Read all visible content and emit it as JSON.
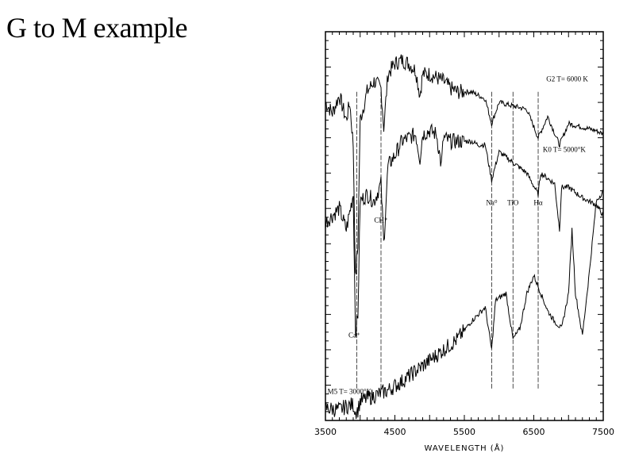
{
  "slide": {
    "title": "G to M example"
  },
  "chart_data": {
    "type": "line",
    "title": "",
    "xlabel": "WAVELENGTH (Å)",
    "ylabel": "",
    "xlim": [
      3500,
      7500
    ],
    "x_ticks": [
      3500,
      4500,
      5500,
      6500,
      7500
    ],
    "grid": false,
    "series": [
      {
        "name": "G2  T= 6000 K",
        "x": [
          3500,
          3600,
          3700,
          3800,
          3850,
          3900,
          3933,
          3968,
          4000,
          4100,
          4200,
          4300,
          4340,
          4400,
          4500,
          4600,
          4700,
          4800,
          4861,
          4900,
          5000,
          5100,
          5200,
          5300,
          5400,
          5500,
          5600,
          5700,
          5800,
          5893,
          6000,
          6200,
          6400,
          6563,
          6700,
          6870,
          7000,
          7200,
          7400,
          7500
        ],
        "y": [
          9.0,
          8.7,
          9.2,
          8.5,
          9.0,
          7.8,
          4.0,
          5.0,
          8.5,
          9.3,
          9.6,
          9.4,
          8.3,
          9.8,
          10.1,
          10.2,
          10.1,
          9.9,
          9.2,
          9.8,
          9.8,
          9.7,
          9.6,
          9.4,
          9.3,
          9.3,
          9.3,
          9.2,
          9.1,
          8.4,
          9.0,
          8.9,
          8.8,
          8.0,
          8.6,
          7.8,
          8.4,
          8.3,
          8.2,
          8.1
        ]
      },
      {
        "name": "K0  T= 5000°K",
        "x": [
          3500,
          3700,
          3800,
          3900,
          3933,
          3968,
          4000,
          4100,
          4200,
          4300,
          4340,
          4400,
          4500,
          4600,
          4700,
          4800,
          4861,
          4900,
          5000,
          5100,
          5168,
          5200,
          5300,
          5400,
          5500,
          5600,
          5700,
          5800,
          5893,
          6000,
          6200,
          6400,
          6563,
          6600,
          6800,
          6870,
          6900,
          7000,
          7200,
          7400,
          7500
        ],
        "y": [
          5.6,
          6.0,
          5.4,
          6.4,
          2.5,
          3.0,
          6.2,
          6.4,
          6.2,
          6.7,
          5.0,
          7.2,
          7.5,
          7.9,
          8.0,
          8.1,
          7.4,
          8.1,
          8.2,
          8.1,
          7.2,
          8.0,
          7.9,
          7.9,
          7.9,
          7.9,
          7.8,
          7.8,
          6.8,
          7.6,
          7.3,
          7.0,
          6.4,
          7.0,
          6.7,
          5.4,
          6.6,
          6.6,
          6.3,
          6.1,
          5.8
        ]
      },
      {
        "name": "M5  T= 3000°K",
        "x": [
          3500,
          3700,
          3800,
          3900,
          3933,
          3968,
          4000,
          4200,
          4400,
          4600,
          4800,
          5000,
          5200,
          5400,
          5600,
          5800,
          5893,
          5950,
          6100,
          6200,
          6300,
          6400,
          6500,
          6600,
          6700,
          6800,
          6900,
          7000,
          7050,
          7100,
          7200,
          7300,
          7400,
          7500
        ],
        "y": [
          0.35,
          0.3,
          0.4,
          0.45,
          0.25,
          0.3,
          0.55,
          0.7,
          0.85,
          1.1,
          1.4,
          1.7,
          2.0,
          2.3,
          2.8,
          3.2,
          2.0,
          3.4,
          3.6,
          2.3,
          2.6,
          3.6,
          4.1,
          3.6,
          3.1,
          2.8,
          2.6,
          3.6,
          5.4,
          3.6,
          2.4,
          4.2,
          6.2,
          6.5
        ]
      }
    ],
    "annotations": [
      {
        "text": "Ca⁺",
        "x": 3950
      },
      {
        "text": "CH⁺",
        "x": 4300
      },
      {
        "text": "Na⁰",
        "x": 5893
      },
      {
        "text": "TiO",
        "x": 6200
      },
      {
        "text": "Hα",
        "x": 6563
      }
    ],
    "ylim": [
      0,
      11
    ]
  }
}
